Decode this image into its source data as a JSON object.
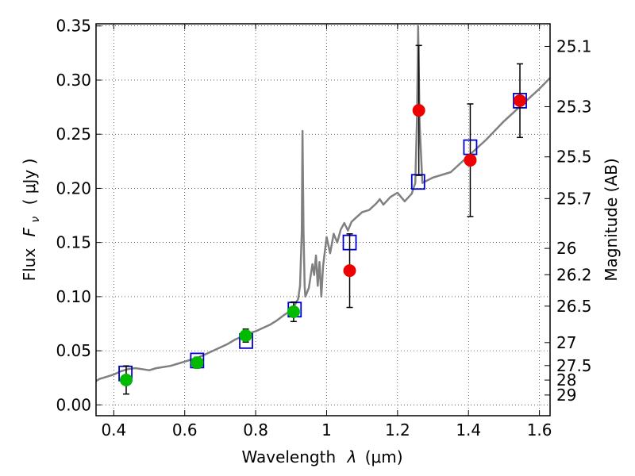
{
  "chart_data": {
    "type": "scatter",
    "xlabel_main": "Wavelength",
    "xlabel_sym": "λ",
    "xlabel_unit": "(μm)",
    "ylabel_main": "Flux",
    "ylabel_sym": "F",
    "ylabel_sub": "ν",
    "ylabel_unit": "( μJy )",
    "y2label": "Magnitude (AB)",
    "xlim": [
      0.35,
      1.63
    ],
    "ylim": [
      -0.01,
      0.352
    ],
    "grid": true,
    "x_ticks": [
      0.4,
      0.6,
      0.8,
      1.0,
      1.2,
      1.4,
      1.6
    ],
    "x_tick_labels": [
      "0.4",
      "0.6",
      "0.8",
      "1",
      "1.2",
      "1.4",
      "1.6"
    ],
    "y_ticks": [
      0.0,
      0.05,
      0.1,
      0.15,
      0.2,
      0.25,
      0.3,
      0.35
    ],
    "y_tick_labels": [
      "0.00",
      "0.05",
      "0.10",
      "0.15",
      "0.20",
      "0.25",
      "0.30",
      "0.35"
    ],
    "mag_ticks": [
      {
        "mag": 25.1,
        "label": "25.1"
      },
      {
        "mag": 25.3,
        "label": "25.3"
      },
      {
        "mag": 25.5,
        "label": "25.5"
      },
      {
        "mag": 25.7,
        "label": "25.7"
      },
      {
        "mag": 26.0,
        "label": "26"
      },
      {
        "mag": 26.2,
        "label": "26.2"
      },
      {
        "mag": 26.5,
        "label": "26.5"
      },
      {
        "mag": 27.0,
        "label": "27"
      },
      {
        "mag": 27.5,
        "label": "27.5"
      },
      {
        "mag": 28.0,
        "label": "28"
      },
      {
        "mag": 29.0,
        "label": "29"
      }
    ],
    "series": [
      {
        "kind": "line",
        "color": "#808080",
        "x": [
          0.35,
          0.36,
          0.38,
          0.4,
          0.42,
          0.44,
          0.46,
          0.48,
          0.5,
          0.52,
          0.54,
          0.56,
          0.58,
          0.6,
          0.62,
          0.64,
          0.66,
          0.68,
          0.7,
          0.72,
          0.74,
          0.76,
          0.78,
          0.8,
          0.82,
          0.84,
          0.86,
          0.88,
          0.9,
          0.91,
          0.92,
          0.925,
          0.93,
          0.932,
          0.935,
          0.938,
          0.94,
          0.95,
          0.96,
          0.965,
          0.97,
          0.975,
          0.98,
          0.985,
          0.99,
          1.0,
          1.01,
          1.02,
          1.03,
          1.04,
          1.05,
          1.06,
          1.07,
          1.08,
          1.1,
          1.12,
          1.14,
          1.15,
          1.16,
          1.18,
          1.2,
          1.22,
          1.24,
          1.25,
          1.255,
          1.258,
          1.262,
          1.27,
          1.3,
          1.35,
          1.4,
          1.45,
          1.5,
          1.55,
          1.6,
          1.63
        ],
        "y": [
          0.022,
          0.024,
          0.026,
          0.028,
          0.031,
          0.033,
          0.034,
          0.033,
          0.032,
          0.034,
          0.035,
          0.036,
          0.038,
          0.04,
          0.042,
          0.044,
          0.047,
          0.05,
          0.053,
          0.056,
          0.06,
          0.063,
          0.066,
          0.068,
          0.071,
          0.074,
          0.078,
          0.083,
          0.087,
          0.092,
          0.098,
          0.11,
          0.16,
          0.253,
          0.16,
          0.11,
          0.1,
          0.108,
          0.13,
          0.12,
          0.138,
          0.11,
          0.132,
          0.1,
          0.128,
          0.155,
          0.14,
          0.158,
          0.15,
          0.162,
          0.168,
          0.161,
          0.169,
          0.172,
          0.178,
          0.18,
          0.186,
          0.19,
          0.185,
          0.192,
          0.196,
          0.188,
          0.195,
          0.205,
          0.265,
          0.35,
          0.26,
          0.205,
          0.21,
          0.215,
          0.23,
          0.245,
          0.262,
          0.277,
          0.292,
          0.302
        ]
      },
      {
        "kind": "squares",
        "color": "#0000cc",
        "x": [
          0.433,
          0.635,
          0.773,
          0.91,
          1.065,
          1.258,
          1.405,
          1.545
        ],
        "y": [
          0.029,
          0.041,
          0.059,
          0.088,
          0.15,
          0.206,
          0.238,
          0.281
        ]
      },
      {
        "kind": "points",
        "color": "#00bb00",
        "x": [
          0.435,
          0.635,
          0.772,
          0.907
        ],
        "y": [
          0.023,
          0.039,
          0.064,
          0.086
        ],
        "yerr": [
          0.013,
          0.005,
          0.006,
          0.009
        ]
      },
      {
        "kind": "points",
        "color": "#ee0000",
        "x": [
          1.065,
          1.26,
          1.405,
          1.545
        ],
        "y": [
          0.124,
          0.272,
          0.226,
          0.281
        ],
        "yerr": [
          0.034,
          0.06,
          0.052,
          0.034
        ]
      }
    ]
  }
}
